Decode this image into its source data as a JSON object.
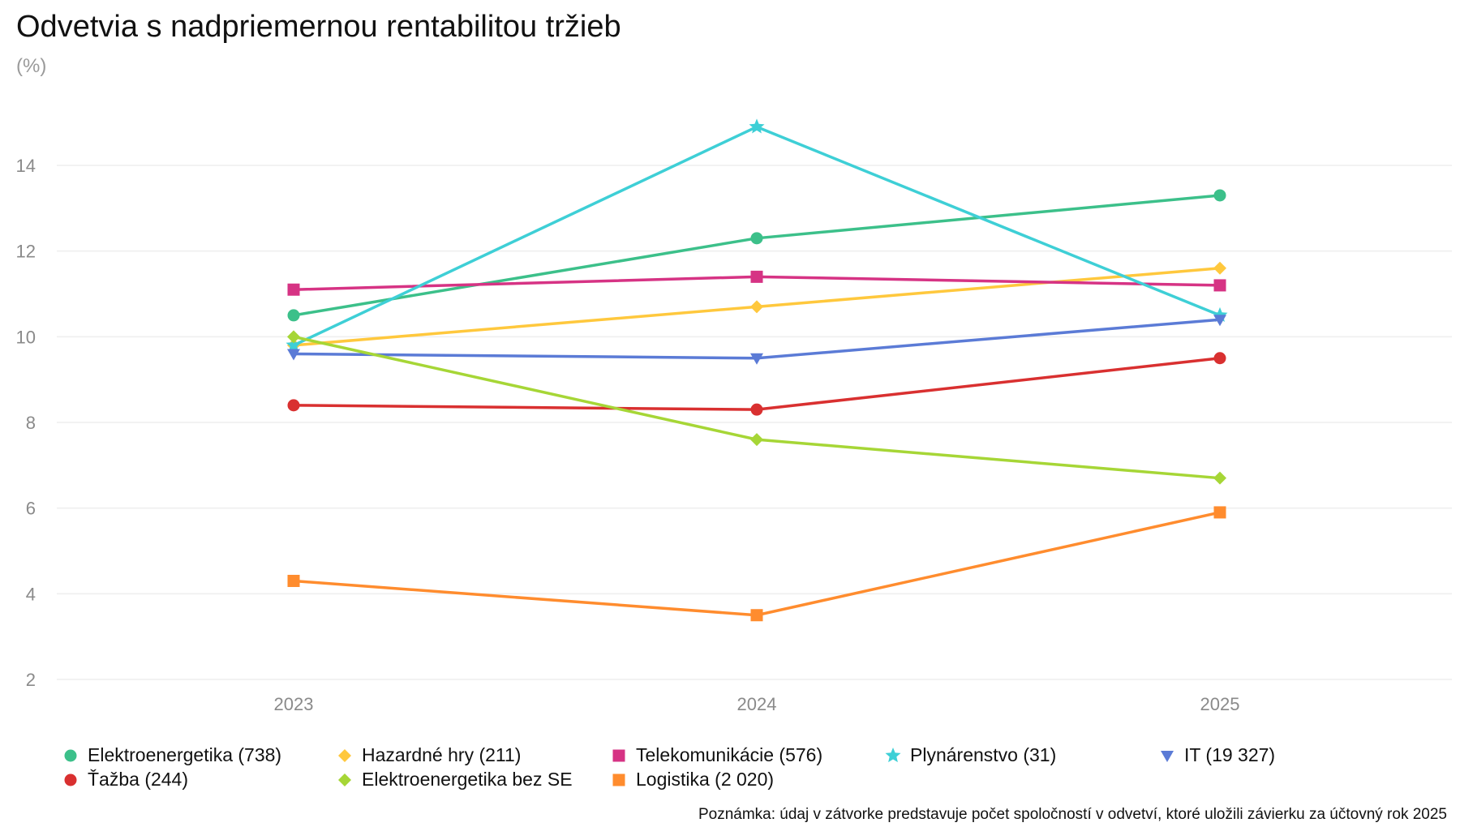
{
  "title": "Odvetvia s nadpriemernou rentabilitou tržieb",
  "subtitle": "(%)",
  "note": "Poznámka: údaj v zátvorke predstavuje počet spoločností v odvetví, ktoré uložili závierku za účtovný rok 2025",
  "chart_data": {
    "type": "line",
    "title": "Odvetvia s nadpriemernou rentabilitou tržieb",
    "ylabel": "(%)",
    "xlabel": "",
    "categories": [
      "2023",
      "2024",
      "2025"
    ],
    "ylim": [
      2,
      15
    ],
    "yticks": [
      2,
      4,
      6,
      8,
      10,
      12,
      14
    ],
    "grid": true,
    "legend_position": "bottom",
    "series": [
      {
        "name": "Elektroenergetika (738)",
        "values": [
          10.5,
          12.3,
          13.3
        ],
        "color": "#3cc08a",
        "marker": "circle"
      },
      {
        "name": "Hazardné hry (211)",
        "values": [
          9.8,
          10.7,
          11.6
        ],
        "color": "#ffc83d",
        "marker": "diamond"
      },
      {
        "name": "Telekomunikácie (576)",
        "values": [
          11.1,
          11.4,
          11.2
        ],
        "color": "#d63384",
        "marker": "square"
      },
      {
        "name": "Plynárenstvo (31)",
        "values": [
          9.8,
          14.9,
          10.5
        ],
        "color": "#3ecfd6",
        "marker": "star"
      },
      {
        "name": "IT (19 327)",
        "values": [
          9.6,
          9.5,
          10.4
        ],
        "color": "#5b7bd6",
        "marker": "triangle-down"
      },
      {
        "name": "Ťažba (244)",
        "values": [
          8.4,
          8.3,
          9.5
        ],
        "color": "#d93030",
        "marker": "circle"
      },
      {
        "name": "Elektroenergetika bez SE",
        "values": [
          10.0,
          7.6,
          6.7
        ],
        "color": "#a6d636",
        "marker": "diamond"
      },
      {
        "name": "Logistika (2 020)",
        "values": [
          4.3,
          3.5,
          5.9
        ],
        "color": "#ff8c2e",
        "marker": "square"
      }
    ]
  }
}
